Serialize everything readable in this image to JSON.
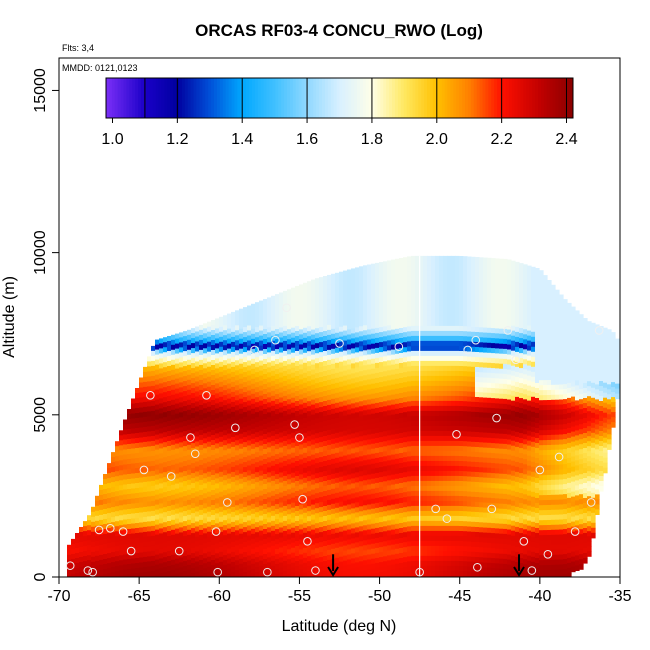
{
  "chart_data": {
    "type": "heatmap",
    "title": "ORCAS RF03-4 CONCU_RWO (Log)",
    "flights_note": "Flts: 3,4",
    "date_note": "MMDD: 0121,0123",
    "xlabel": "Latitude (deg N)",
    "ylabel": "Altitude (m)",
    "xlim": [
      -70,
      -35
    ],
    "ylim": [
      0,
      16000
    ],
    "x_ticks": [
      -70,
      -65,
      -60,
      -55,
      -50,
      -45,
      -40,
      -35
    ],
    "x_tick_labels": [
      "-70",
      "-65",
      "-60",
      "-55",
      "-50",
      "-45",
      "-40",
      "-35"
    ],
    "y_ticks": [
      0,
      5000,
      10000,
      15000
    ],
    "y_tick_labels": [
      "0",
      "5000",
      "10000",
      "15000"
    ],
    "colorbar": {
      "min": 0.98,
      "max": 2.42,
      "ticks": [
        1.0,
        1.2,
        1.4,
        1.6,
        1.8,
        2.0,
        2.2,
        2.4
      ],
      "tick_labels": [
        "1.0",
        "1.2",
        "1.4",
        "1.6",
        "1.8",
        "2.0",
        "2.2",
        "2.4"
      ],
      "stops": [
        {
          "v": 0.98,
          "color": "#7b2ff7"
        },
        {
          "v": 1.1,
          "color": "#1a00c8"
        },
        {
          "v": 1.2,
          "color": "#0000a0"
        },
        {
          "v": 1.3,
          "color": "#0050d8"
        },
        {
          "v": 1.4,
          "color": "#00a8ff"
        },
        {
          "v": 1.5,
          "color": "#40c0ff"
        },
        {
          "v": 1.6,
          "color": "#90d8ff"
        },
        {
          "v": 1.7,
          "color": "#d8f0ff"
        },
        {
          "v": 1.8,
          "color": "#ffffe8"
        },
        {
          "v": 1.9,
          "color": "#ffe860"
        },
        {
          "v": 2.0,
          "color": "#ffc000"
        },
        {
          "v": 2.1,
          "color": "#ff8000"
        },
        {
          "v": 2.2,
          "color": "#ff1000"
        },
        {
          "v": 2.32,
          "color": "#c00000"
        },
        {
          "v": 2.42,
          "color": "#8a0000"
        }
      ]
    },
    "field": {
      "lat_left": -70,
      "lat_right": -35,
      "envelope": [
        {
          "lat": -69.5,
          "bottom": 0,
          "top": 900
        },
        {
          "lat": -68,
          "bottom": 0,
          "top": 2000
        },
        {
          "lat": -66,
          "bottom": 0,
          "top": 4700
        },
        {
          "lat": -64,
          "bottom": 0,
          "top": 7300
        },
        {
          "lat": -62,
          "bottom": 0,
          "top": 7600
        },
        {
          "lat": -60,
          "bottom": 0,
          "top": 8000
        },
        {
          "lat": -57,
          "bottom": 0,
          "top": 8600
        },
        {
          "lat": -54,
          "bottom": 0,
          "top": 9200
        },
        {
          "lat": -51,
          "bottom": 0,
          "top": 9600
        },
        {
          "lat": -48,
          "bottom": 0,
          "top": 9900
        },
        {
          "lat": -45,
          "bottom": 0,
          "top": 9900
        },
        {
          "lat": -42,
          "bottom": 0,
          "top": 9800
        },
        {
          "lat": -40,
          "bottom": 0,
          "top": 9500
        },
        {
          "lat": -38.5,
          "bottom": 0,
          "top": 8600
        },
        {
          "lat": -37,
          "bottom": 500,
          "top": 7900
        },
        {
          "lat": -35.5,
          "bottom": 4500,
          "top": 7600
        },
        {
          "lat": -35,
          "bottom": 6200,
          "top": 7200
        }
      ],
      "alt_profile": [
        {
          "alt": 0,
          "value": 2.3
        },
        {
          "alt": 400,
          "value": 2.28
        },
        {
          "alt": 800,
          "value": 2.2
        },
        {
          "alt": 1300,
          "value": 2.25
        },
        {
          "alt": 1800,
          "value": 1.95
        },
        {
          "alt": 2300,
          "value": 2.15
        },
        {
          "alt": 2800,
          "value": 2.05
        },
        {
          "alt": 3300,
          "value": 2.2
        },
        {
          "alt": 3900,
          "value": 2.1
        },
        {
          "alt": 4500,
          "value": 2.3
        },
        {
          "alt": 5000,
          "value": 2.35
        },
        {
          "alt": 5500,
          "value": 2.15
        },
        {
          "alt": 6000,
          "value": 2.05
        },
        {
          "alt": 6500,
          "value": 1.95
        },
        {
          "alt": 6900,
          "value": 1.7
        },
        {
          "alt": 7100,
          "value": 1.15
        },
        {
          "alt": 7300,
          "value": 1.45
        },
        {
          "alt": 7700,
          "value": 1.75
        },
        {
          "alt": 8500,
          "value": 1.72
        },
        {
          "alt": 10000,
          "value": 1.7
        }
      ],
      "divider_lat": -47.5
    },
    "sample_points": [
      {
        "lat": -69.3,
        "alt": 350
      },
      {
        "lat": -68.2,
        "alt": 200
      },
      {
        "lat": -67.5,
        "alt": 1450
      },
      {
        "lat": -66.8,
        "alt": 1500
      },
      {
        "lat": -66.0,
        "alt": 1400
      },
      {
        "lat": -65.5,
        "alt": 800
      },
      {
        "lat": -64.7,
        "alt": 3300
      },
      {
        "lat": -64.3,
        "alt": 5600
      },
      {
        "lat": -63.0,
        "alt": 3100
      },
      {
        "lat": -62.5,
        "alt": 800
      },
      {
        "lat": -61.8,
        "alt": 4300
      },
      {
        "lat": -61.5,
        "alt": 3800
      },
      {
        "lat": -60.8,
        "alt": 5600
      },
      {
        "lat": -60.2,
        "alt": 1400
      },
      {
        "lat": -59.5,
        "alt": 2300
      },
      {
        "lat": -59.0,
        "alt": 4600
      },
      {
        "lat": -57.8,
        "alt": 7000
      },
      {
        "lat": -56.5,
        "alt": 7300
      },
      {
        "lat": -55.8,
        "alt": 8300
      },
      {
        "lat": -55.3,
        "alt": 4700
      },
      {
        "lat": -55.0,
        "alt": 4300
      },
      {
        "lat": -54.8,
        "alt": 2400
      },
      {
        "lat": -54.5,
        "alt": 1100
      },
      {
        "lat": -54.0,
        "alt": 200
      },
      {
        "lat": -52.5,
        "alt": 7200
      },
      {
        "lat": -48.8,
        "alt": 7100
      },
      {
        "lat": -46.5,
        "alt": 2100
      },
      {
        "lat": -45.8,
        "alt": 1800
      },
      {
        "lat": -45.2,
        "alt": 4400
      },
      {
        "lat": -44.5,
        "alt": 7000
      },
      {
        "lat": -44.0,
        "alt": 7300
      },
      {
        "lat": -43.0,
        "alt": 2100
      },
      {
        "lat": -42.7,
        "alt": 4900
      },
      {
        "lat": -42.0,
        "alt": 7600
      },
      {
        "lat": -41.5,
        "alt": 6700
      },
      {
        "lat": -41.0,
        "alt": 1100
      },
      {
        "lat": -40.5,
        "alt": 200
      },
      {
        "lat": -40.0,
        "alt": 3300
      },
      {
        "lat": -39.5,
        "alt": 700
      },
      {
        "lat": -38.8,
        "alt": 3700
      },
      {
        "lat": -37.8,
        "alt": 1400
      },
      {
        "lat": -36.8,
        "alt": 2300
      },
      {
        "lat": -36.3,
        "alt": 7600
      },
      {
        "lat": -67.9,
        "alt": 150
      },
      {
        "lat": -60.1,
        "alt": 150
      },
      {
        "lat": -57.0,
        "alt": 150
      },
      {
        "lat": -47.5,
        "alt": 150
      },
      {
        "lat": -43.9,
        "alt": 300
      }
    ],
    "arrows": [
      {
        "lat": -52.9,
        "alt_top": 700,
        "alt_bottom": 0
      },
      {
        "lat": -41.3,
        "alt_top": 700,
        "alt_bottom": 0
      }
    ]
  }
}
